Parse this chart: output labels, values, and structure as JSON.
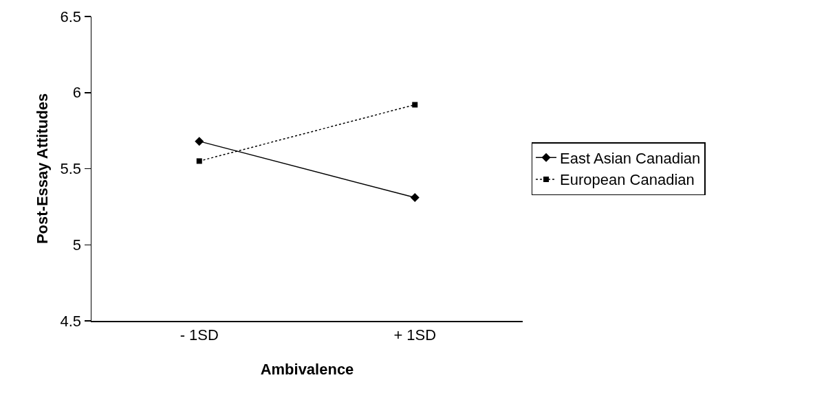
{
  "chart_data": {
    "type": "line",
    "xlabel": "Ambivalence",
    "ylabel": "Post-Essay Attitudes",
    "categories": [
      "- 1SD",
      "+ 1SD"
    ],
    "series": [
      {
        "name": "East Asian Canadian",
        "color": "#000000",
        "marker": "diamond",
        "line_style": "solid",
        "values": [
          5.68,
          5.31
        ]
      },
      {
        "name": "European Canadian",
        "color": "#000000",
        "marker": "square",
        "line_style": "dotted",
        "values": [
          5.55,
          5.92
        ]
      }
    ],
    "ylim": [
      4.5,
      6.5
    ],
    "yticks": [
      4.5,
      5,
      5.5,
      6,
      6.5
    ],
    "grid": false,
    "legend": "right"
  }
}
